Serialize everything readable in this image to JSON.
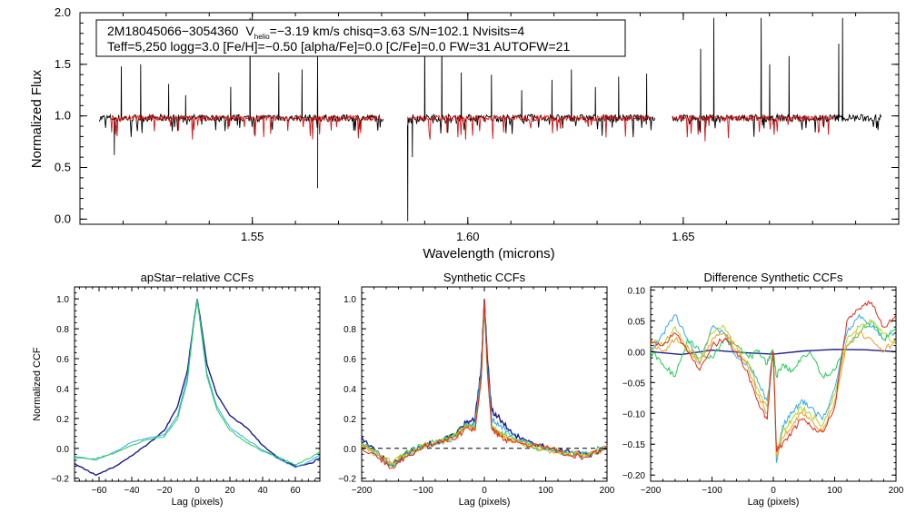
{
  "colors": {
    "observed": "#000000",
    "model": "#d81414",
    "series": [
      "#1c1c8c",
      "#33aaee",
      "#22cc55",
      "#b4d020",
      "#f0a020",
      "#e02a1a"
    ]
  },
  "info_box": {
    "line1_id": "2M18045066−3054360",
    "line1_v_prefix": "V",
    "line1_v_sub": "helio",
    "line1_v_rest": "=−3.19 km/s  chisq=3.63  S/N=102.1  Nvisits=4",
    "line2": "Teff=5,250 logg=3.0 [Fe/H]=−0.50 [alpha/Fe]=0.0 [C/Fe]=0.0 FW=31 AUTOFW=21"
  },
  "chart_data": [
    {
      "type": "line",
      "id": "spectrum",
      "title": "",
      "xlabel": "Wavelength (microns)",
      "ylabel": "Normalized Flux",
      "xlim": [
        1.51,
        1.7
      ],
      "ylim": [
        -0.05,
        2.0
      ],
      "xticks": [
        1.55,
        1.6,
        1.65
      ],
      "xtick_labels": [
        "1.55",
        "1.60",
        "1.65"
      ],
      "yticks": [
        0.0,
        0.5,
        1.0,
        1.5,
        2.0
      ],
      "ytick_labels": [
        "0.0",
        "0.5",
        "1.0",
        "1.5",
        "2.0"
      ],
      "chips": [
        [
          1.5145,
          1.5805
        ],
        [
          1.586,
          1.6435
        ],
        [
          1.6475,
          1.696
        ]
      ],
      "model_chips": [
        [
          1.517,
          1.58
        ],
        [
          1.586,
          1.6425
        ],
        [
          1.6475,
          1.685
        ]
      ],
      "series": [
        {
          "name": "observed spectrum",
          "continuum": 0.98
        },
        {
          "name": "best-fit model",
          "continuum": 0.98
        }
      ],
      "emission_spikes": [
        1.5195,
        1.524,
        1.5305,
        1.5345,
        1.545,
        1.5495,
        1.556,
        1.5615,
        1.565,
        1.59,
        1.594,
        1.5985,
        1.6055,
        1.6125,
        1.6195,
        1.624,
        1.6295,
        1.635,
        1.6415,
        1.647,
        1.654,
        1.657,
        1.668,
        1.67,
        1.6745,
        1.686,
        1.687
      ],
      "emission_peaks": [
        1.48,
        1.5,
        1.31,
        1.2,
        1.28,
        1.95,
        1.42,
        1.45,
        1.6,
        1.85,
        1.88,
        1.42,
        1.4,
        1.25,
        1.35,
        1.45,
        1.28,
        1.38,
        1.41,
        2.0,
        1.65,
        1.95,
        1.95,
        1.5,
        1.58,
        1.7,
        1.95
      ],
      "absorption_dips": [
        1.518,
        1.565,
        1.586,
        1.587
      ],
      "absorption_minima": [
        0.62,
        0.3,
        -0.02,
        0.6
      ]
    },
    {
      "type": "line",
      "id": "apstar-ccf",
      "title": "apStar−relative CCFs",
      "xlabel": "Lag (pixels)",
      "ylabel": "Normalized CCF",
      "xlim": [
        -75,
        75
      ],
      "ylim": [
        -0.22,
        1.08
      ],
      "xticks": [
        -60,
        -40,
        -20,
        0,
        20,
        40,
        60
      ],
      "xtick_labels": [
        "−60",
        "−40",
        "−20",
        "0",
        "20",
        "40",
        "60"
      ],
      "yticks": [
        -0.2,
        0.0,
        0.2,
        0.4,
        0.6,
        0.8,
        1.0
      ],
      "ytick_labels": [
        "−0.2",
        "0.0",
        "0.2",
        "0.4",
        "0.6",
        "0.8",
        "1.0"
      ],
      "series": [
        {
          "name": "dark blue",
          "color_index": 0,
          "x": [
            -75,
            -62,
            -50,
            -40,
            -30,
            -20,
            -12,
            -6,
            -2,
            0,
            2,
            6,
            12,
            20,
            30,
            40,
            50,
            60,
            70,
            75
          ],
          "y": [
            -0.1,
            -0.18,
            -0.12,
            -0.05,
            0.03,
            0.12,
            0.28,
            0.52,
            0.85,
            1.0,
            0.86,
            0.56,
            0.36,
            0.22,
            0.14,
            0.02,
            -0.07,
            -0.12,
            -0.1,
            -0.06
          ]
        },
        {
          "name": "cyan",
          "color_index": 1,
          "x": [
            -75,
            -62,
            -50,
            -40,
            -30,
            -20,
            -12,
            -6,
            -2,
            0,
            2,
            6,
            12,
            20,
            30,
            40,
            50,
            60,
            70,
            75
          ],
          "y": [
            -0.05,
            -0.08,
            -0.02,
            0.04,
            0.07,
            0.09,
            0.22,
            0.48,
            0.85,
            1.0,
            0.84,
            0.5,
            0.28,
            0.14,
            0.06,
            -0.01,
            -0.07,
            -0.13,
            -0.08,
            -0.04
          ]
        },
        {
          "name": "green",
          "color_index": 2,
          "x": [
            -75,
            -62,
            -50,
            -40,
            -30,
            -20,
            -12,
            -6,
            -2,
            0,
            2,
            6,
            12,
            20,
            30,
            40,
            50,
            60,
            70,
            75
          ],
          "y": [
            -0.06,
            -0.07,
            -0.03,
            0.02,
            0.06,
            0.08,
            0.2,
            0.45,
            0.84,
            0.99,
            0.82,
            0.48,
            0.26,
            0.12,
            0.04,
            -0.02,
            -0.06,
            -0.11,
            -0.06,
            -0.02
          ]
        }
      ]
    },
    {
      "type": "line",
      "id": "synthetic-ccf",
      "title": "Synthetic CCFs",
      "xlabel": "Lag (pixels)",
      "ylabel": "",
      "xlim": [
        -200,
        200
      ],
      "ylim": [
        -0.22,
        1.08
      ],
      "xticks": [
        -200,
        -100,
        0,
        100,
        200
      ],
      "xtick_labels": [
        "−200",
        "−100",
        "0",
        "100",
        "200"
      ],
      "yticks": [
        -0.2,
        0.0,
        0.2,
        0.4,
        0.6,
        0.8,
        1.0
      ],
      "ytick_labels": [
        "−0.2",
        "0.0",
        "0.2",
        "0.4",
        "0.6",
        "0.8",
        "1.0"
      ],
      "baseline": 0.0,
      "series": [
        {
          "name": "dark blue",
          "color_index": 0,
          "x": [
            -200,
            -170,
            -150,
            -130,
            -100,
            -70,
            -45,
            -30,
            -15,
            -5,
            0,
            5,
            12,
            25,
            40,
            60,
            80,
            110,
            140,
            170,
            200
          ],
          "y": [
            0.08,
            -0.05,
            -0.12,
            -0.04,
            0.02,
            0.05,
            0.1,
            0.17,
            0.2,
            0.55,
            1.0,
            0.6,
            0.25,
            0.2,
            0.12,
            0.06,
            0.03,
            0.0,
            -0.03,
            -0.05,
            0.0
          ]
        },
        {
          "name": "cyan",
          "color_index": 1,
          "x": [
            -200,
            -170,
            -150,
            -130,
            -100,
            -70,
            -45,
            -30,
            -15,
            -5,
            0,
            5,
            12,
            25,
            40,
            60,
            80,
            110,
            140,
            170,
            200
          ],
          "y": [
            0.05,
            -0.06,
            -0.11,
            -0.05,
            0.01,
            0.04,
            0.08,
            0.14,
            0.18,
            0.52,
            1.0,
            0.55,
            0.2,
            0.15,
            0.1,
            0.05,
            0.02,
            -0.01,
            -0.04,
            -0.04,
            0.01
          ]
        },
        {
          "name": "green",
          "color_index": 2,
          "x": [
            -200,
            -170,
            -150,
            -130,
            -100,
            -70,
            -45,
            -30,
            -15,
            -5,
            0,
            5,
            12,
            25,
            40,
            60,
            80,
            110,
            140,
            170,
            200
          ],
          "y": [
            0.04,
            -0.07,
            -0.12,
            -0.03,
            0.02,
            0.06,
            0.1,
            0.16,
            0.15,
            0.45,
            0.95,
            0.48,
            0.15,
            0.1,
            0.08,
            0.04,
            0.0,
            -0.02,
            -0.05,
            -0.03,
            0.02
          ]
        },
        {
          "name": "yellow-green",
          "color_index": 3,
          "x": [
            -200,
            -170,
            -150,
            -130,
            -100,
            -70,
            -45,
            -30,
            -15,
            -5,
            0,
            5,
            12,
            25,
            40,
            60,
            80,
            110,
            140,
            170,
            200
          ],
          "y": [
            0.03,
            -0.05,
            -0.1,
            -0.04,
            0.01,
            0.05,
            0.09,
            0.15,
            0.14,
            0.46,
            0.98,
            0.5,
            0.16,
            0.11,
            0.07,
            0.03,
            0.01,
            -0.01,
            -0.03,
            -0.05,
            0.01
          ]
        },
        {
          "name": "orange",
          "color_index": 4,
          "x": [
            -200,
            -170,
            -150,
            -130,
            -100,
            -70,
            -45,
            -30,
            -15,
            -5,
            0,
            5,
            12,
            25,
            40,
            60,
            80,
            110,
            140,
            170,
            200
          ],
          "y": [
            0.02,
            -0.06,
            -0.11,
            -0.05,
            0.02,
            0.04,
            0.08,
            0.15,
            0.13,
            0.47,
            0.99,
            0.51,
            0.14,
            0.09,
            0.06,
            0.04,
            0.02,
            -0.02,
            -0.04,
            -0.04,
            0.0
          ]
        },
        {
          "name": "red",
          "color_index": 5,
          "x": [
            -200,
            -170,
            -150,
            -130,
            -100,
            -70,
            -45,
            -30,
            -15,
            -5,
            0,
            5,
            12,
            25,
            40,
            60,
            80,
            110,
            140,
            170,
            200
          ],
          "y": [
            0.01,
            -0.07,
            -0.13,
            -0.06,
            0.01,
            0.05,
            0.07,
            0.14,
            0.12,
            0.48,
            1.0,
            0.52,
            0.13,
            0.08,
            0.05,
            0.03,
            0.03,
            0.0,
            -0.05,
            -0.06,
            0.02
          ]
        }
      ]
    },
    {
      "type": "line",
      "id": "difference-ccf",
      "title": "Difference Synthetic CCFs",
      "xlabel": "Lag (pixels)",
      "ylabel": "",
      "xlim": [
        -200,
        200
      ],
      "ylim": [
        -0.21,
        0.105
      ],
      "xticks": [
        -200,
        -100,
        0,
        100,
        200
      ],
      "xtick_labels": [
        "−200",
        "−100",
        "0",
        "100",
        "200"
      ],
      "yticks": [
        -0.2,
        -0.15,
        -0.1,
        -0.05,
        0.0,
        0.05,
        0.1
      ],
      "ytick_labels": [
        "−0.20",
        "−0.15",
        "−0.10",
        "−0.05",
        "0.00",
        "0.05",
        "0.10"
      ],
      "series": [
        {
          "name": "dark blue",
          "color_index": 0,
          "x": [
            -200,
            200
          ],
          "y": [
            0.0,
            0.0
          ]
        },
        {
          "name": "cyan",
          "color_index": 1,
          "x": [
            -200,
            -180,
            -160,
            -140,
            -120,
            -100,
            -80,
            -60,
            -40,
            -25,
            -10,
            -3,
            0,
            5,
            15,
            30,
            45,
            60,
            80,
            100,
            120,
            140,
            160,
            180,
            200
          ],
          "y": [
            0.0,
            0.03,
            0.06,
            0.02,
            -0.02,
            0.04,
            0.03,
            -0.01,
            -0.02,
            -0.05,
            -0.08,
            -0.02,
            0.0,
            -0.18,
            -0.12,
            -0.1,
            -0.08,
            -0.09,
            -0.11,
            -0.06,
            0.03,
            0.06,
            0.04,
            0.02,
            0.03
          ]
        },
        {
          "name": "green",
          "color_index": 2,
          "x": [
            -200,
            -180,
            -160,
            -140,
            -120,
            -100,
            -80,
            -60,
            -40,
            -25,
            -10,
            -3,
            0,
            5,
            15,
            30,
            45,
            60,
            80,
            100,
            120,
            140,
            160,
            180,
            200
          ],
          "y": [
            0.0,
            -0.02,
            -0.04,
            0.02,
            0.0,
            -0.01,
            0.02,
            0.01,
            -0.01,
            0.0,
            -0.02,
            0.0,
            0.0,
            -0.04,
            -0.02,
            -0.03,
            -0.01,
            0.0,
            -0.04,
            -0.03,
            0.01,
            0.03,
            0.05,
            0.02,
            0.04
          ]
        },
        {
          "name": "yellow-green",
          "color_index": 3,
          "x": [
            -200,
            -180,
            -160,
            -140,
            -120,
            -100,
            -80,
            -60,
            -40,
            -25,
            -10,
            -3,
            0,
            5,
            15,
            30,
            45,
            60,
            80,
            100,
            120,
            140,
            160,
            180,
            200
          ],
          "y": [
            0.02,
            0.01,
            0.04,
            0.0,
            -0.01,
            0.03,
            0.04,
            0.0,
            -0.02,
            -0.06,
            -0.09,
            -0.03,
            0.0,
            -0.16,
            -0.13,
            -0.11,
            -0.09,
            -0.1,
            -0.12,
            -0.07,
            0.02,
            0.04,
            0.05,
            0.03,
            0.01
          ]
        },
        {
          "name": "orange",
          "color_index": 4,
          "x": [
            -200,
            -180,
            -160,
            -140,
            -120,
            -100,
            -80,
            -60,
            -40,
            -25,
            -10,
            -3,
            0,
            5,
            15,
            30,
            45,
            60,
            80,
            100,
            120,
            140,
            160,
            180,
            200
          ],
          "y": [
            0.01,
            0.0,
            0.02,
            0.01,
            -0.02,
            0.02,
            0.03,
            0.01,
            -0.03,
            -0.07,
            -0.1,
            -0.02,
            0.0,
            -0.17,
            -0.14,
            -0.12,
            -0.1,
            -0.11,
            -0.13,
            -0.08,
            0.01,
            0.03,
            0.02,
            0.0,
            0.02
          ]
        },
        {
          "name": "red",
          "color_index": 5,
          "x": [
            -200,
            -180,
            -160,
            -140,
            -120,
            -100,
            -80,
            -60,
            -40,
            -25,
            -10,
            -3,
            0,
            5,
            15,
            30,
            45,
            60,
            80,
            100,
            120,
            140,
            160,
            180,
            200
          ],
          "y": [
            0.02,
            0.01,
            0.03,
            0.0,
            -0.03,
            0.01,
            0.02,
            0.0,
            -0.04,
            -0.08,
            -0.11,
            -0.02,
            0.0,
            -0.16,
            -0.15,
            -0.13,
            -0.11,
            -0.12,
            -0.13,
            -0.09,
            0.05,
            0.07,
            0.08,
            0.04,
            0.06
          ]
        }
      ]
    }
  ]
}
